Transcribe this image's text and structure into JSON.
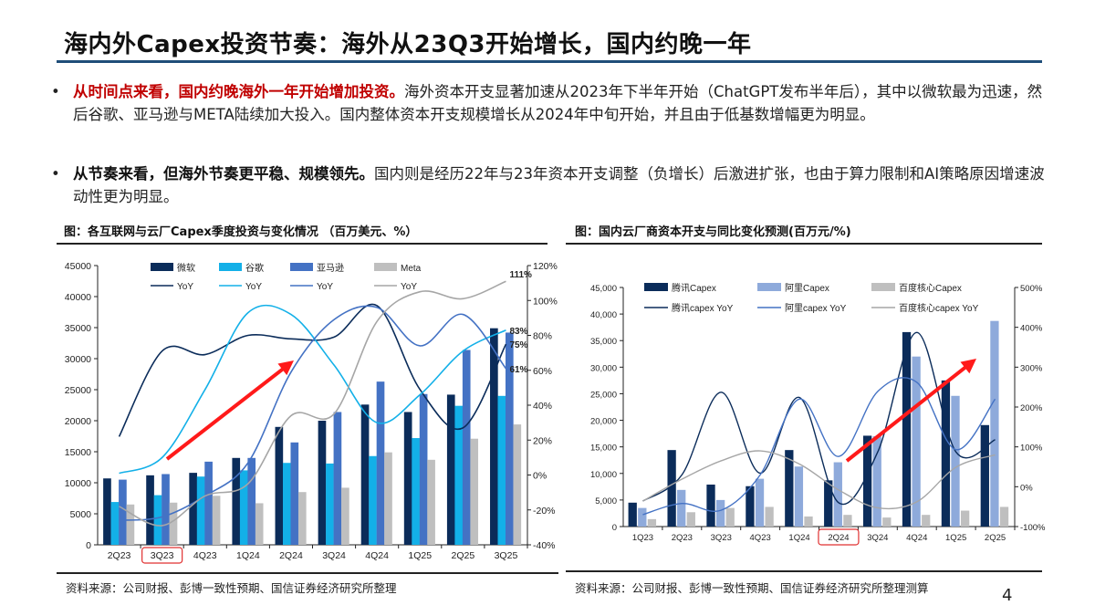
{
  "title": "海内外Capex投资节奏：海外从23Q3开始增长，国内约晚一年",
  "bullets": [
    {
      "highlight": "从时间点来看，国内约晚海外一年开始增加投资。",
      "highlight_color": "#c00000",
      "text": "海外资本开支显著加速从2023年下半年开始（ChatGPT发布半年后），其中以微软最为迅速，然后谷歌、亚马逊与META陆续加大投入。国内整体资本开支规模增长从2024年中旬开始，并且由于低基数增幅更为明显。"
    },
    {
      "highlight": "从节奏来看，但海外节奏更平稳、规模领先。",
      "highlight_color": "#111111",
      "text": "国内则是经历22年与23年资本开支调整（负增长）后激进扩张，也由于算力限制和AI策略原因增速波动性更为明显。"
    }
  ],
  "page_number": "4",
  "chart_data": [
    {
      "type": "bar",
      "title": "图：各互联网与云厂Capex季度投资与变化情况 （百万美元、%）",
      "source": "资料来源：公司财报、彭博一致性预期、国信证券经济研究所整理",
      "categories": [
        "2Q23",
        "3Q23",
        "4Q23",
        "1Q24",
        "2Q24",
        "3Q24",
        "4Q24",
        "1Q25",
        "2Q25",
        "3Q25"
      ],
      "highlighted_category": "3Q23",
      "ylim": [
        0,
        45000
      ],
      "yticks": [
        "0",
        "5000",
        "10000",
        "15000",
        "20000",
        "25000",
        "30000",
        "35000",
        "40000",
        "45000"
      ],
      "y2lim": [
        -40,
        120
      ],
      "y2ticks": [
        "-40%",
        "-20%",
        "0%",
        "20%",
        "40%",
        "60%",
        "80%",
        "100%",
        "120%"
      ],
      "series": [
        {
          "name": "微软",
          "color": "#0b2c5a",
          "values": [
            10700,
            11200,
            11600,
            14000,
            19000,
            20000,
            22600,
            21400,
            24200,
            34900
          ]
        },
        {
          "name": "谷歌",
          "color": "#13b0e8",
          "values": [
            6900,
            8000,
            11000,
            12000,
            13200,
            13100,
            14300,
            17200,
            22400,
            24000
          ]
        },
        {
          "name": "亚马逊",
          "color": "#4472c4",
          "values": [
            10500,
            11400,
            13400,
            14000,
            16500,
            21400,
            26300,
            24300,
            31400,
            34200
          ]
        },
        {
          "name": "Meta",
          "color": "#bfbfbf",
          "values": [
            6500,
            6800,
            7900,
            6700,
            8500,
            9200,
            14900,
            13700,
            17100,
            19400
          ]
        }
      ],
      "line_series": [
        {
          "name": "YoY",
          "color": "#0b2c5a",
          "values": [
            22,
            71,
            69,
            80,
            78,
            79,
            97,
            49,
            27,
            75
          ],
          "end_label": "75%"
        },
        {
          "name": "YoY",
          "color": "#13b0e8",
          "values": [
            1,
            10,
            49,
            93,
            92,
            63,
            30,
            46,
            71,
            83
          ],
          "end_label": "83%"
        },
        {
          "name": "YoY",
          "color": "#4472c4",
          "values": [
            -26,
            -24,
            -12,
            7,
            59,
            89,
            96,
            74,
            92,
            61
          ],
          "end_label": "61%"
        },
        {
          "name": "YoY",
          "color": "#a6a6a6",
          "values": [
            -18,
            -29,
            -12,
            -5,
            34,
            35,
            88,
            105,
            101,
            111
          ],
          "end_label": "111%"
        }
      ],
      "annotation": "red-trend-arrow"
    },
    {
      "type": "bar",
      "title": "图：国内云厂商资本开支与同比变化预测(百万元/%)",
      "source": "资料来源：公司财报、彭博一致性预期、国信证券经济研究所整理测算",
      "categories": [
        "1Q23",
        "2Q23",
        "3Q23",
        "4Q23",
        "1Q24",
        "2Q24",
        "3Q24",
        "4Q24",
        "1Q25",
        "2Q25"
      ],
      "highlighted_category": "2Q24",
      "ylim": [
        0,
        45000
      ],
      "yticks": [
        "0",
        "5,000",
        "10,000",
        "15,000",
        "20,000",
        "25,000",
        "30,000",
        "35,000",
        "40,000",
        "45,000"
      ],
      "y2lim": [
        -100,
        500
      ],
      "y2ticks": [
        "-100%",
        "0%",
        "100%",
        "200%",
        "300%",
        "400%",
        "500%"
      ],
      "series": [
        {
          "name": "腾讯Capex",
          "color": "#0b2c5a",
          "values": [
            4500,
            14400,
            7900,
            7600,
            14400,
            8700,
            17100,
            36600,
            27500,
            19100
          ]
        },
        {
          "name": "阿里Capex",
          "color": "#8eaadb",
          "values": [
            3500,
            6900,
            5000,
            9000,
            11300,
            12100,
            17000,
            32000,
            24600,
            38700
          ]
        },
        {
          "name": "百度核心Capex",
          "color": "#bfbfbf",
          "values": [
            1400,
            2700,
            3500,
            3700,
            1900,
            2200,
            1700,
            2200,
            3000,
            3700
          ]
        }
      ],
      "line_series": [
        {
          "name": "腾讯capex YoY",
          "color": "#0b2c5a",
          "values": [
            -36,
            30,
            237,
            34,
            224,
            -40,
            87,
            387,
            87,
            118
          ]
        },
        {
          "name": "阿里capex YoY",
          "color": "#4472c4",
          "values": [
            -70,
            -42,
            -59,
            30,
            220,
            76,
            239,
            262,
            93,
            220
          ]
        },
        {
          "name": "百度核心capex YoY",
          "color": "#a6a6a6",
          "values": [
            -36,
            19,
            65,
            90,
            57,
            -8,
            -53,
            -38,
            49,
            80
          ]
        }
      ],
      "annotation": "red-trend-arrow"
    }
  ]
}
